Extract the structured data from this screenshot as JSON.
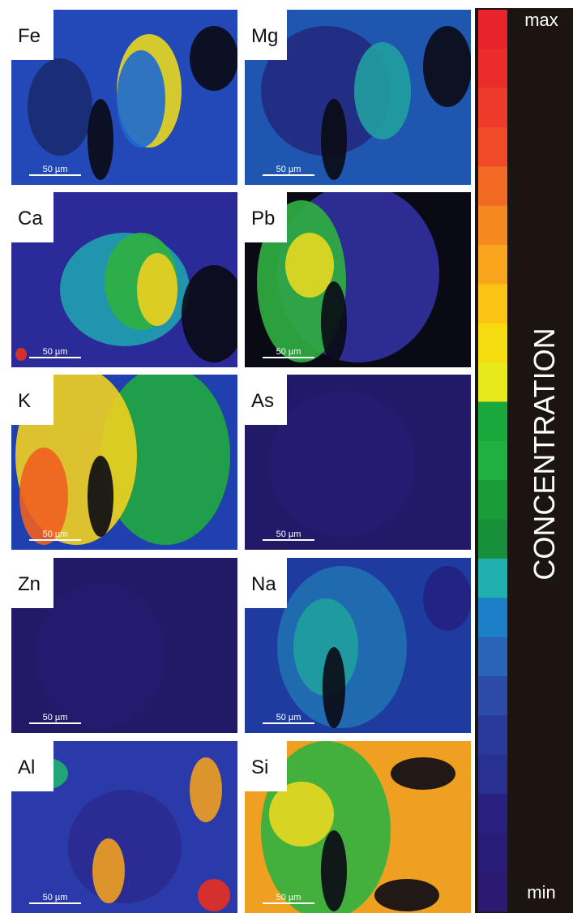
{
  "panels": [
    {
      "label": "Fe",
      "scale_bar": "50 µm"
    },
    {
      "label": "Mg",
      "scale_bar": "50 µm"
    },
    {
      "label": "Ca",
      "scale_bar": "50 µm"
    },
    {
      "label": "Pb",
      "scale_bar": "50 µm"
    },
    {
      "label": "K",
      "scale_bar": "50 µm"
    },
    {
      "label": "As",
      "scale_bar": "50 µm"
    },
    {
      "label": "Zn",
      "scale_bar": "50 µm"
    },
    {
      "label": "Na",
      "scale_bar": "50 µm"
    },
    {
      "label": "Al",
      "scale_bar": "50 µm"
    },
    {
      "label": "Si",
      "scale_bar": "50 µm"
    }
  ],
  "colorbar": {
    "max": "max",
    "min": "min",
    "title": "CONCENTRATION"
  }
}
